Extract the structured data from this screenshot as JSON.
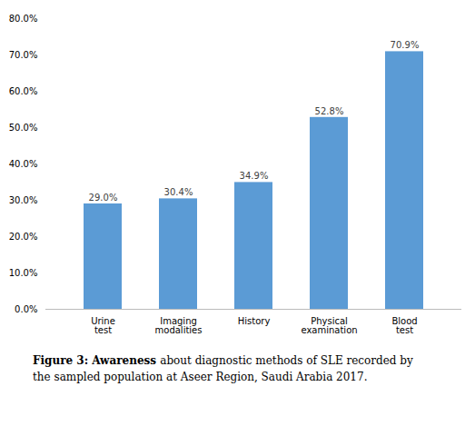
{
  "chart_data": {
    "type": "bar",
    "caption": "Figure 3: Awareness about diagnostic methods of SLE recorded by\nthe sampled population at Aseer Region, Saudi Arabia 2017.",
    "categories": [
      "Urine test",
      "Imaging modalities",
      "History",
      "Physical examination",
      "Blood test"
    ],
    "values": [
      29.0,
      30.4,
      34.9,
      52.8,
      70.9
    ],
    "value_labels": [
      "29.0%",
      "30.4%",
      "34.9%",
      "52.8%",
      "70.9%"
    ],
    "color": "#5B9BD5",
    "ylim": [
      0,
      80
    ],
    "yticks": [
      {
        "value": 0,
        "label": "0.0%"
      },
      {
        "value": 10,
        "label": "10.0%"
      },
      {
        "value": 20,
        "label": "20.0%"
      },
      {
        "value": 30,
        "label": "30.0%"
      },
      {
        "value": 40,
        "label": "40.0%"
      },
      {
        "value": 50,
        "label": "50.0%"
      },
      {
        "value": 60,
        "label": "60.0%"
      },
      {
        "value": 70,
        "label": "70.0%"
      },
      {
        "value": 80,
        "label": "80.0%"
      }
    ],
    "grid": false,
    "data_labels": true
  }
}
